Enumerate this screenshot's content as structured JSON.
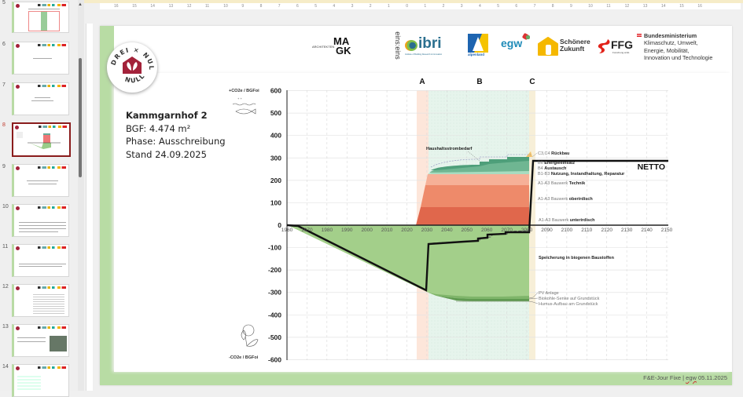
{
  "ruler": {
    "ticks": [
      "16",
      "15",
      "14",
      "13",
      "12",
      "11",
      "10",
      "9",
      "8",
      "7",
      "6",
      "5",
      "4",
      "3",
      "2",
      "1",
      "0",
      "1",
      "2",
      "3",
      "4",
      "5",
      "6",
      "7",
      "8",
      "9",
      "10",
      "11",
      "12",
      "13",
      "14",
      "15",
      "16"
    ]
  },
  "thumbnails": [
    {
      "number": "5",
      "title": "",
      "selected": false
    },
    {
      "number": "6",
      "title": "Thematische Schwerpunkte",
      "selected": false
    },
    {
      "number": "7",
      "title": "Ökobilanzierung",
      "selected": false
    },
    {
      "number": "8",
      "title": "Kammgarnhof 2",
      "selected": true
    },
    {
      "number": "9",
      "title": "",
      "selected": false
    },
    {
      "number": "10",
      "title": "",
      "selected": false
    },
    {
      "number": "11",
      "title": "",
      "selected": false
    },
    {
      "number": "12",
      "title": "",
      "selected": false
    },
    {
      "number": "13",
      "title": "",
      "selected": false
    },
    {
      "number": "14",
      "title": "",
      "selected": false
    }
  ],
  "slide": {
    "logo_text": {
      "top": "DREI × NULL",
      "bottom": "NULL"
    },
    "project": {
      "title": "Kammgarnhof 2",
      "bgf": "BGF: 4.474 m²",
      "phase": "Phase: Ausschreibung",
      "date": "Stand 24.09.2025"
    },
    "partners": [
      {
        "name": "ARCHITEKTEN MAGK",
        "small": "ARCHITEKTEN",
        "big1": "MA",
        "big2": "GK"
      },
      {
        "name": "einszueins",
        "text": "eins:eins"
      },
      {
        "name": "ibri",
        "text": "ibri",
        "sub": "Institute of Building Research & Innovation"
      },
      {
        "name": "alpenland",
        "text": "alpenland"
      },
      {
        "name": "egw",
        "text": "egw"
      },
      {
        "name": "Schönere Zukunft",
        "line1": "Schönere",
        "line2": "Zukunft"
      },
      {
        "name": "FFG",
        "text": "FFG",
        "sub": "Forschung wirkt."
      }
    ],
    "ministry": [
      "Bundesministerium",
      "Klimaschutz, Umwelt,",
      "Energie, Mobilität,",
      "Innovation und Technologie"
    ],
    "footer": {
      "prefix": "F&E-Jour Fixe | ",
      "egw": "egw",
      "suffix": " 05.11.2025"
    }
  },
  "chart_data": {
    "type": "area",
    "title": "",
    "ylabel_top": "+CO2e / BGFoi",
    "ylabel_bottom": "-CO2e / BGFoi",
    "xlabel": "",
    "ylim": [
      -600,
      600
    ],
    "xlim": [
      1960,
      2150
    ],
    "y_ticks": [
      "600",
      "500",
      "400",
      "300",
      "200",
      "100",
      "0",
      "-100",
      "-200",
      "-300",
      "-400",
      "-500",
      "-600"
    ],
    "x_ticks": [
      "1960",
      "1970",
      "1980",
      "1990",
      "2000",
      "2010",
      "2020",
      "2030",
      "2040",
      "2050",
      "2060",
      "2070",
      "2080",
      "2090",
      "2100",
      "2110",
      "2120",
      "2130",
      "2140",
      "2150"
    ],
    "phases": [
      {
        "label": "A",
        "x_start": 2026,
        "x_end": 2032,
        "color": "#fde6da"
      },
      {
        "label": "B",
        "x_start": 2032,
        "x_end": 2083,
        "color": "#e4f3ea"
      },
      {
        "label": "C",
        "x_start": 2083,
        "x_end": 2086,
        "color": "#f6efd8"
      }
    ],
    "series": [
      {
        "name": "A1-A3 Bauwerk unterirdisch",
        "color": "#e0674c",
        "value": 80
      },
      {
        "name": "A1-A3 Bauwerk oberirdisch",
        "color": "#ee8a6a",
        "value": 100
      },
      {
        "name": "A1-A3 Bauwerk Technik",
        "color": "#f6b097",
        "value": 55
      },
      {
        "name": "B1-B3 Nutzung, Instandhaltung, Reparatur",
        "color": "#a8dcc0",
        "value": 10
      },
      {
        "name": "B4 Austausch",
        "color": "#6fb692",
        "value": 20
      },
      {
        "name": "B6 Energieeinsatz",
        "color": "#4e9f7a",
        "value": 20
      },
      {
        "name": "C3,C4 Rückbau",
        "color": "#f2c26a",
        "value": 5
      },
      {
        "name": "Haushaltsstrombedarf",
        "color": "#ffffff",
        "value": 0
      },
      {
        "name": "Speicherung in biogenen Baustoffen",
        "color": "#a3cf8a",
        "value": -270
      },
      {
        "name": "PV Anlage",
        "color": "#7fb56a",
        "value": -5
      },
      {
        "name": "Biokohle-Senke auf Grundstück",
        "color": "#5f9a50",
        "value": -15
      },
      {
        "name": "Humus-Aufbau am Grundstück",
        "color": "#8aa080",
        "value": -3
      }
    ],
    "netto": {
      "label": "NETTO",
      "points": [
        [
          1960,
          0
        ],
        [
          1967,
          0
        ],
        [
          2031,
          -275
        ],
        [
          2033,
          -80
        ],
        [
          2057,
          -72
        ],
        [
          2058,
          -70
        ],
        [
          2063,
          -68
        ],
        [
          2064,
          -45
        ],
        [
          2073,
          -42
        ],
        [
          2074,
          -30
        ],
        [
          2083,
          -30
        ],
        [
          2085,
          290
        ],
        [
          2150,
          290
        ]
      ]
    },
    "annotations": [
      "Haushaltsstrombedarf",
      "C3,C4 Rückbau",
      "B6 Energieeinsatz",
      "B4 Austausch",
      "B1-B3 Nutzung, Instandhaltung, Reparatur",
      "A1-A3 Bauwerk Technik",
      "A1-A3 Bauwerk oberirdisch",
      "A1-A3 Bauwerk unterirdisch",
      "Speicherung in biogenen Baustoffen",
      "PV Anlage",
      "Biokohle-Senke auf Grundstück",
      "Humus-Aufbau am Grundstück"
    ],
    "labels": {
      "phase_a": "A",
      "phase_b": "B",
      "phase_c": "C",
      "c34_pre": "C3,C4 ",
      "c34_bold": "Rückbau",
      "b6_pre": "B6 ",
      "b6_bold": "Energieeinsatz",
      "b4_pre": "B4 ",
      "b4_bold": "Austausch",
      "b13_pre": "B1-B3 ",
      "b13_bold": "Nutzung, Instandhaltung, Reparatur",
      "tech_pre": "A1-A3 Bauwerk ",
      "tech_bold": "Technik",
      "ober_pre": "A1-A3 Bauwerk ",
      "ober_bold": "oberirdisch",
      "unter_pre": "A1-A3 Bauwerk ",
      "unter_bold": "unterirdisch",
      "haushalt": "Haushaltsstrombedarf",
      "speicher": "Speicherung in biogenen Baustoffen",
      "pv": "PV Anlage",
      "biokohle": "Biokohle-Senke auf Grundstück",
      "humus": "Humus-Aufbau am Grundstück",
      "netto": "NETTO"
    },
    "grid": true
  }
}
